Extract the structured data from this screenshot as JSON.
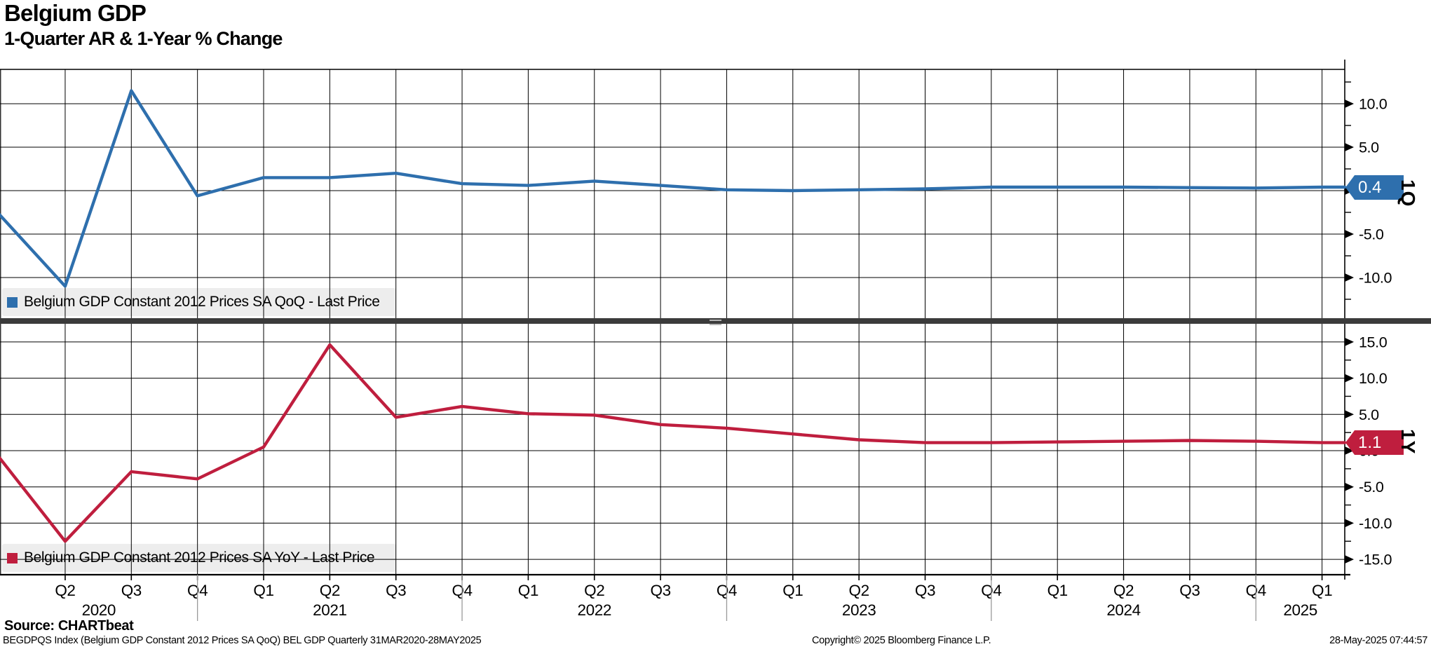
{
  "header": {
    "title": "Belgium GDP",
    "subtitle": "1-Quarter AR & 1-Year % Change"
  },
  "footer": {
    "source": "Source: CHARTbeat",
    "description": "BEGDPQS Index (Belgium GDP Constant 2012 Prices SA QoQ) BEL GDP  Quarterly 31MAR2020-28MAY2025",
    "copyright": "Copyright© 2025 Bloomberg Finance L.P.",
    "timestamp": "28-May-2025 07:44:57"
  },
  "chart_data": {
    "type": "line",
    "grid": "on",
    "categories": [
      "Q1 2020",
      "Q2 2020",
      "Q3 2020",
      "Q4 2020",
      "Q1 2021",
      "Q2 2021",
      "Q3 2021",
      "Q4 2021",
      "Q1 2022",
      "Q2 2022",
      "Q3 2022",
      "Q4 2022",
      "Q1 2023",
      "Q2 2023",
      "Q3 2023",
      "Q4 2023",
      "Q1 2024",
      "Q2 2024",
      "Q3 2024",
      "Q4 2024",
      "Q1 2025"
    ],
    "x_axis": {
      "quarter_ticks": [
        "Q2",
        "Q3",
        "Q4",
        "Q1",
        "Q2",
        "Q3",
        "Q4",
        "Q1",
        "Q2",
        "Q3",
        "Q4",
        "Q1",
        "Q2",
        "Q3",
        "Q4",
        "Q1",
        "Q2",
        "Q3",
        "Q4",
        "Q1"
      ],
      "year_ticks": [
        "2020",
        "2021",
        "2022",
        "2023",
        "2024",
        "2025"
      ]
    },
    "panels": [
      {
        "name": "qoq",
        "legend": "Belgium GDP Constant 2012 Prices SA QoQ - Last Price",
        "color": "#2e6fad",
        "side_label": "1Q",
        "last_price": "0.4",
        "ylim": [
          -14.8,
          14.0
        ],
        "yticks": [
          {
            "value": 10,
            "label": "10.0"
          },
          {
            "value": 5,
            "label": "5.0"
          },
          {
            "value": 0,
            "label": "0.0"
          },
          {
            "value": -5,
            "label": "-5.0"
          },
          {
            "value": -10,
            "label": "-10.0"
          }
        ],
        "values": [
          -2.7,
          -11.0,
          11.5,
          -0.6,
          1.5,
          1.5,
          2.0,
          0.8,
          0.6,
          1.1,
          0.6,
          0.1,
          0.0,
          0.1,
          0.2,
          0.4,
          0.4,
          0.4,
          0.35,
          0.3,
          0.4
        ]
      },
      {
        "name": "yoy",
        "legend": "Belgium GDP Constant 2012 Prices SA YoY - Last Price",
        "color": "#bf1e3e",
        "side_label": "1Y",
        "last_price": "1.1",
        "ylim": [
          -17.1,
          17.4
        ],
        "yticks": [
          {
            "value": 15,
            "label": "15.0"
          },
          {
            "value": 10,
            "label": "10.0"
          },
          {
            "value": 5,
            "label": "5.0"
          },
          {
            "value": 0,
            "label": "0.0"
          },
          {
            "value": -5,
            "label": "-5.0"
          },
          {
            "value": -10,
            "label": "-10.0"
          },
          {
            "value": -15,
            "label": "-15.0"
          }
        ],
        "values": [
          -0.9,
          -12.5,
          -2.9,
          -3.9,
          0.5,
          14.6,
          4.6,
          6.1,
          5.1,
          4.9,
          3.6,
          3.1,
          2.3,
          1.5,
          1.1,
          1.1,
          1.2,
          1.3,
          1.4,
          1.3,
          1.1
        ]
      }
    ]
  }
}
